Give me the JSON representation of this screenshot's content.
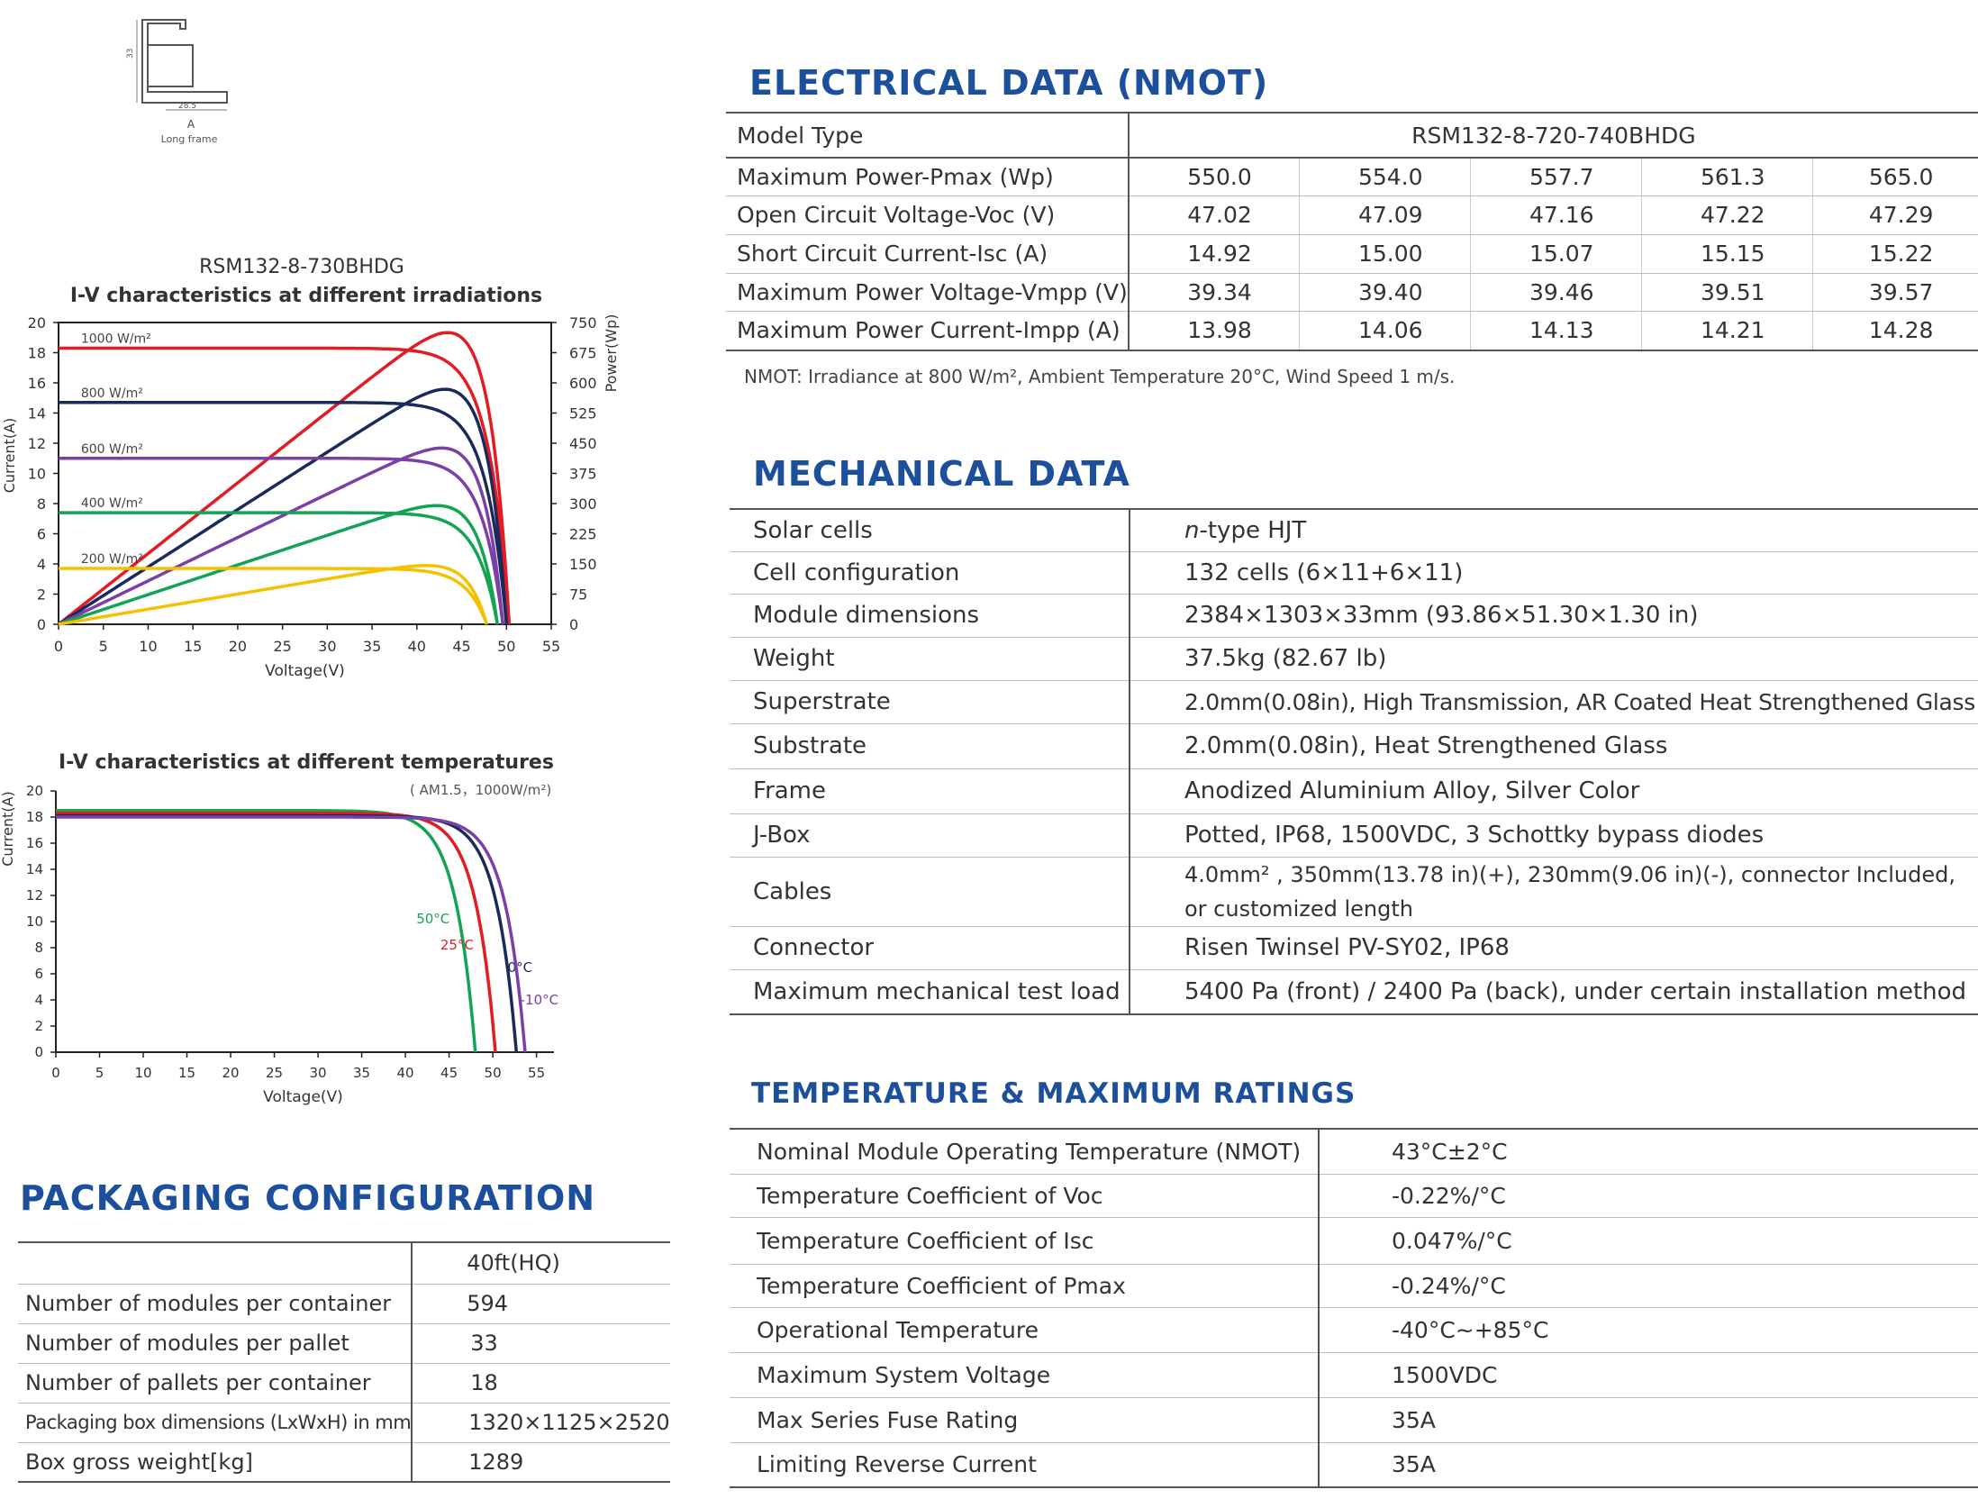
{
  "frame_drawing": {
    "width_label": "28.5",
    "height_label": "33",
    "label": "A",
    "caption": "Long frame"
  },
  "iv_irradiance": {
    "model": "RSM132-8-730BHDG",
    "title": "I-V characteristics at different irradiations",
    "xlabel": "Voltage(V)",
    "ylabel": "Current(A)",
    "y2label": "Power(Wp)"
  },
  "iv_temperature": {
    "title": "I-V characteristics at different temperatures",
    "subtitle": "( AM1.5，1000W/m²)",
    "xlabel": "Voltage(V)",
    "ylabel": "Current(A)"
  },
  "chart_data": [
    {
      "type": "line",
      "title": "I-V characteristics at different irradiations",
      "xlabel": "Voltage(V)",
      "ylabel": "Current(A)",
      "y2label": "Power(Wp)",
      "xlim": [
        0,
        55
      ],
      "ylim": [
        0,
        20
      ],
      "y2lim": [
        0,
        750
      ],
      "xticks": [
        0,
        5,
        10,
        15,
        20,
        25,
        30,
        35,
        40,
        45,
        50,
        55
      ],
      "yticks": [
        0,
        2,
        4,
        6,
        8,
        10,
        12,
        14,
        16,
        18,
        20
      ],
      "y2ticks": [
        0,
        75,
        150,
        225,
        300,
        375,
        450,
        525,
        600,
        675,
        750
      ],
      "series": [
        {
          "name": "1000 W/m²",
          "color": "#e31b23",
          "isc": 18.3,
          "voc": 50.3,
          "vmp": 42.5,
          "pmax": 725
        },
        {
          "name": "800 W/m²",
          "color": "#1b2a5c",
          "isc": 14.7,
          "voc": 50.0,
          "vmp": 42.3,
          "pmax": 584
        },
        {
          "name": "600 W/m²",
          "color": "#7b3fa8",
          "isc": 11.0,
          "voc": 49.6,
          "vmp": 42.0,
          "pmax": 438
        },
        {
          "name": "400 W/m²",
          "color": "#12a453",
          "isc": 7.4,
          "voc": 49.0,
          "vmp": 41.5,
          "pmax": 295
        },
        {
          "name": "200 W/m²",
          "color": "#f5c000",
          "isc": 3.7,
          "voc": 47.8,
          "vmp": 40.5,
          "pmax": 146
        }
      ]
    },
    {
      "type": "line",
      "title": "I-V characteristics at different temperatures",
      "xlabel": "Voltage(V)",
      "ylabel": "Current(A)",
      "xlim": [
        0,
        57
      ],
      "ylim": [
        0,
        20
      ],
      "xticks": [
        0,
        5,
        10,
        15,
        20,
        25,
        30,
        35,
        40,
        45,
        50,
        55
      ],
      "yticks": [
        0,
        2,
        4,
        6,
        8,
        10,
        12,
        14,
        16,
        18,
        20
      ],
      "series": [
        {
          "name": "50°C",
          "color": "#12a453",
          "isc": 18.5,
          "voc": 48.0
        },
        {
          "name": "25°C",
          "color": "#e31b23",
          "isc": 18.3,
          "voc": 50.3
        },
        {
          "name": "0°C",
          "color": "#1b2a5c",
          "isc": 18.1,
          "voc": 52.7
        },
        {
          "name": "-10°C",
          "color": "#7b3fa8",
          "isc": 18.0,
          "voc": 53.7
        }
      ]
    }
  ],
  "electrical": {
    "title": "ELECTRICAL DATA (NMOT)",
    "model_label": "Model Type",
    "model_value": "RSM132-8-720-740BHDG",
    "rows": [
      {
        "label": "Maximum Power-Pmax (Wp)",
        "values": [
          "550.0",
          "554.0",
          "557.7",
          "561.3",
          "565.0"
        ]
      },
      {
        "label": "Open Circuit Voltage-Voc (V)",
        "values": [
          "47.02",
          "47.09",
          "47.16",
          "47.22",
          "47.29"
        ]
      },
      {
        "label": "Short Circuit Current-Isc (A)",
        "values": [
          "14.92",
          "15.00",
          "15.07",
          "15.15",
          "15.22"
        ]
      },
      {
        "label": "Maximum Power Voltage-Vmpp (V)",
        "values": [
          "39.34",
          "39.40",
          "39.46",
          "39.51",
          "39.57"
        ]
      },
      {
        "label": "Maximum Power Current-Impp (A)",
        "values": [
          "13.98",
          "14.06",
          "14.13",
          "14.21",
          "14.28"
        ]
      }
    ],
    "note": "NMOT: Irradiance at 800 W/m², Ambient Temperature 20°C, Wind Speed 1 m/s."
  },
  "mechanical": {
    "title": "MECHANICAL DATA",
    "rows": [
      {
        "label": "Solar cells",
        "value_prefix": "n",
        "value": "-type HJT"
      },
      {
        "label": "Cell configuration",
        "value": "132 cells (6×11+6×11)"
      },
      {
        "label": "Module dimensions",
        "value": "2384×1303×33mm (93.86×51.30×1.30 in)"
      },
      {
        "label": "Weight",
        "value": "37.5kg (82.67 lb)"
      },
      {
        "label": "Superstrate",
        "value": "2.0mm(0.08in), High Transmission, AR Coated Heat Strengthened Glass"
      },
      {
        "label": "Substrate",
        "value": "2.0mm(0.08in), Heat Strengthened Glass"
      },
      {
        "label": "Frame",
        "value": "Anodized Aluminium Alloy, Silver Color"
      },
      {
        "label": "J-Box",
        "value": "Potted, IP68, 1500VDC, 3 Schottky bypass diodes"
      },
      {
        "label": "Cables",
        "value": "4.0mm² , 350mm(13.78 in)(+), 230mm(9.06 in)(-), connector Included,",
        "value2": "or customized length"
      },
      {
        "label": "Connector",
        "value": "Risen Twinsel PV-SY02, IP68"
      },
      {
        "label": "Maximum mechanical test load",
        "value": "5400 Pa (front) / 2400 Pa (back), under certain installation method"
      }
    ]
  },
  "temperature": {
    "title": "TEMPERATURE & MAXIMUM RATINGS",
    "rows": [
      {
        "label": "Nominal Module Operating Temperature (NMOT)",
        "value": "43°C±2°C"
      },
      {
        "label": "Temperature Coefficient of Voc",
        "value": "-0.22%/°C"
      },
      {
        "label": "Temperature Coefficient of Isc",
        "value": "0.047%/°C"
      },
      {
        "label": "Temperature Coefficient of Pmax",
        "value": "-0.24%/°C"
      },
      {
        "label": "Operational Temperature",
        "value": "-40°C~+85°C"
      },
      {
        "label": "Maximum System Voltage",
        "value": "1500VDC"
      },
      {
        "label": "Max Series Fuse Rating",
        "value": "35A"
      },
      {
        "label": "Limiting Reverse Current",
        "value": "35A"
      }
    ]
  },
  "packaging": {
    "title": "PACKAGING CONFIGURATION",
    "header": "40ft(HQ)",
    "rows": [
      {
        "label": "Number of modules per container",
        "value": "594"
      },
      {
        "label": "Number of modules per pallet",
        "value": "33"
      },
      {
        "label": "Number of pallets per container",
        "value": "18"
      },
      {
        "label": "Packaging box dimensions (LxWxH) in mm",
        "value": "1320×1125×2520"
      },
      {
        "label": "Box gross weight[kg]",
        "value": "1289"
      }
    ]
  }
}
